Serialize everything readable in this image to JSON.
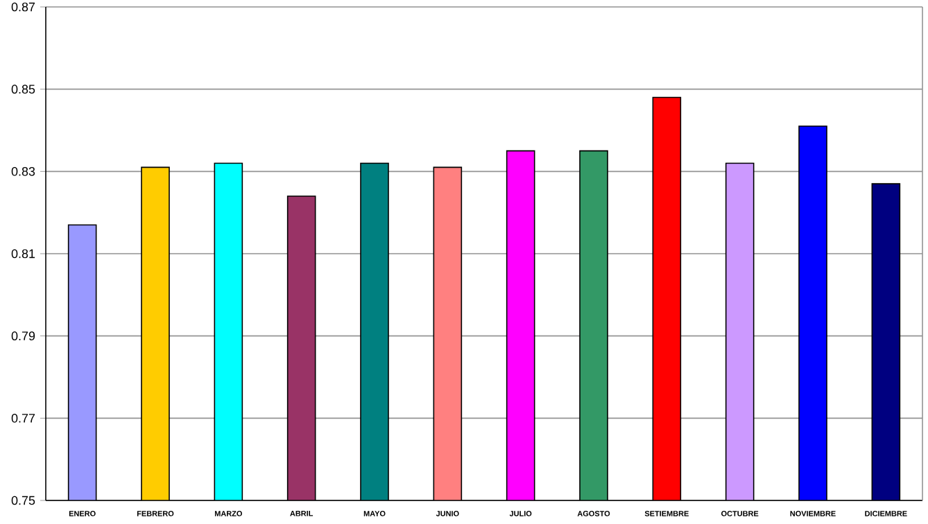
{
  "chart_data": {
    "type": "bar",
    "categories": [
      "ENERO",
      "FEBRERO",
      "MARZO",
      "ABRIL",
      "MAYO",
      "JUNIO",
      "JULIO",
      "AGOSTO",
      "SETIEMBRE",
      "OCTUBRE",
      "NOVIEMBRE",
      "DICIEMBRE"
    ],
    "values": [
      0.817,
      0.831,
      0.832,
      0.824,
      0.832,
      0.831,
      0.835,
      0.835,
      0.848,
      0.832,
      0.841,
      0.827
    ],
    "colors": [
      "#9999ff",
      "#ffcc00",
      "#00ffff",
      "#993366",
      "#008080",
      "#ff8080",
      "#ff00ff",
      "#339966",
      "#ff0000",
      "#cc99ff",
      "#0000ff",
      "#000080"
    ],
    "ylim": [
      0.75,
      0.87
    ],
    "yticks": [
      0.75,
      0.77,
      0.79,
      0.81,
      0.83,
      0.85,
      0.87
    ],
    "grid": "y"
  }
}
